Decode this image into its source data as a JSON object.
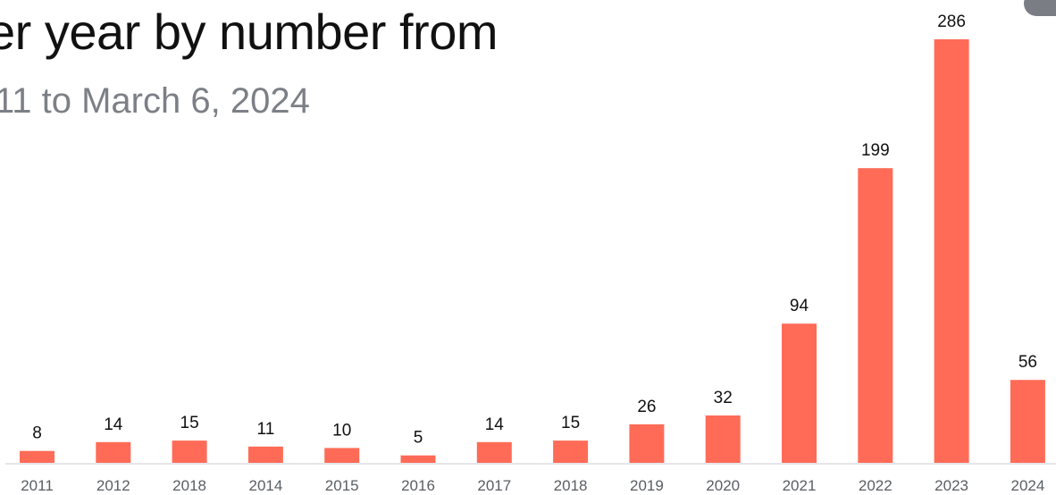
{
  "header": {
    "title": "er year by number from",
    "subtitle": "11 to March 6, 2024"
  },
  "colors": {
    "bar": "#ff6b57",
    "baseline": "#e6e6ea",
    "title": "#111111",
    "subtitle": "#7c8086",
    "tick": "#5a5e63",
    "corner_tab": "#7a7e84"
  },
  "chart_data": {
    "type": "bar",
    "title": "er year by number from",
    "subtitle": "11 to March 6, 2024",
    "categories": [
      "2011",
      "2012",
      "2018",
      "2014",
      "2015",
      "2016",
      "2017",
      "2018",
      "2019",
      "2020",
      "2021",
      "2022",
      "2023",
      "2024"
    ],
    "values": [
      8,
      14,
      15,
      11,
      10,
      5,
      14,
      15,
      26,
      32,
      94,
      199,
      286,
      56
    ],
    "xlabel": "",
    "ylabel": "",
    "ylim": [
      0,
      286
    ],
    "data_labels": true,
    "grid": false,
    "legend": "none"
  }
}
